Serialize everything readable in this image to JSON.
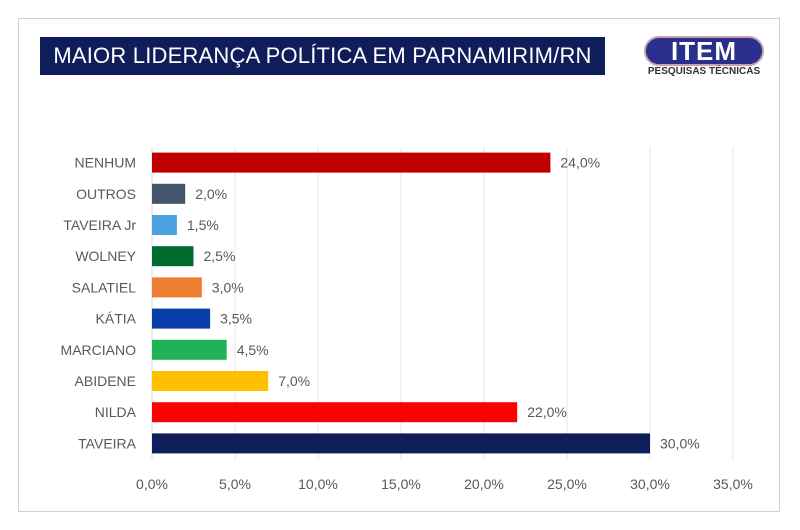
{
  "header": {
    "title": "MAIOR LIDERANÇA POLÍTICA EM PARNAMIRIM/RN",
    "logo_main": "ITEM",
    "logo_sub": "PESQUISAS TÉCNICAS"
  },
  "chart_data": {
    "type": "bar",
    "orientation": "horizontal",
    "title": "MAIOR LIDERANÇA POLÍTICA EM PARNAMIRIM/RN",
    "categories": [
      "NENHUM",
      "OUTROS",
      "TAVEIRA Jr",
      "WOLNEY",
      "SALATIEL",
      "KÁTIA",
      "MARCIANO",
      "ABIDENE",
      "NILDA",
      "TAVEIRA"
    ],
    "values": [
      24.0,
      2.0,
      1.5,
      2.5,
      3.0,
      3.5,
      4.5,
      7.0,
      22.0,
      30.0
    ],
    "labels": [
      "24,0%",
      "2,0%",
      "1,5%",
      "2,5%",
      "3,0%",
      "3,5%",
      "4,5%",
      "7,0%",
      "22,0%",
      "30,0%"
    ],
    "colors": [
      "#c00000",
      "#44546a",
      "#4aa3df",
      "#006b2e",
      "#ed7d31",
      "#0a3ea8",
      "#1fb356",
      "#ffc000",
      "#ff0000",
      "#0f1e5a"
    ],
    "xlim": [
      0,
      35
    ],
    "xticks": [
      "0,0%",
      "5,0%",
      "10,0%",
      "15,0%",
      "20,0%",
      "25,0%",
      "30,0%",
      "35,0%"
    ],
    "grid": true
  }
}
